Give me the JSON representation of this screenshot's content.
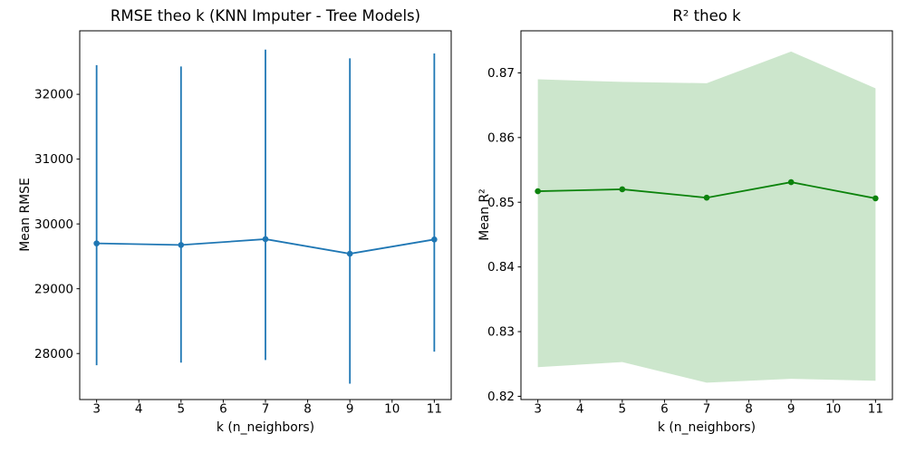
{
  "figure": {
    "background": "#ffffff",
    "spine_color": "#000000"
  },
  "chart_data": [
    {
      "type": "line",
      "title": "RMSE theo k (KNN Imputer - Tree Models)",
      "xlabel": "k (n_neighbors)",
      "ylabel": "Mean RMSE",
      "x": [
        3,
        5,
        7,
        9,
        11
      ],
      "y": [
        29700,
        29675,
        29765,
        29540,
        29760
      ],
      "y_err_low": [
        27820,
        27860,
        27900,
        27535,
        28030
      ],
      "y_err_high": [
        32450,
        32430,
        32690,
        32555,
        32630
      ],
      "line_color": "#1f77b4",
      "marker": "circle",
      "grid": false,
      "legend": null,
      "xlim": [
        2.6,
        11.4
      ],
      "ylim": [
        27290,
        32980
      ],
      "xticks": [
        3,
        4,
        5,
        6,
        7,
        8,
        9,
        10,
        11
      ],
      "xtick_labels": [
        "3",
        "4",
        "5",
        "6",
        "7",
        "8",
        "9",
        "10",
        "11"
      ],
      "yticks": [
        28000,
        29000,
        30000,
        31000,
        32000
      ],
      "ytick_labels": [
        "28000",
        "29000",
        "30000",
        "31000",
        "32000"
      ]
    },
    {
      "type": "line",
      "title": "R² theo k",
      "xlabel": "k (n_neighbors)",
      "ylabel": "Mean R²",
      "x": [
        3,
        5,
        7,
        9,
        11
      ],
      "y": [
        0.8517,
        0.852,
        0.8507,
        0.8531,
        0.8506
      ],
      "band_low": [
        0.8245,
        0.8253,
        0.8221,
        0.8227,
        0.8224
      ],
      "band_high": [
        0.869,
        0.8686,
        0.8684,
        0.8733,
        0.8676
      ],
      "line_color": "#0c830c",
      "band_color": "rgba(0,128,0,0.2)",
      "marker": "circle",
      "grid": false,
      "legend": null,
      "xlim": [
        2.6,
        11.4
      ],
      "ylim": [
        0.8195,
        0.8765
      ],
      "xticks": [
        3,
        4,
        5,
        6,
        7,
        8,
        9,
        10,
        11
      ],
      "xtick_labels": [
        "3",
        "4",
        "5",
        "6",
        "7",
        "8",
        "9",
        "10",
        "11"
      ],
      "yticks": [
        0.82,
        0.83,
        0.84,
        0.85,
        0.86,
        0.87
      ],
      "ytick_labels": [
        "0.82",
        "0.83",
        "0.84",
        "0.85",
        "0.86",
        "0.87"
      ]
    }
  ]
}
